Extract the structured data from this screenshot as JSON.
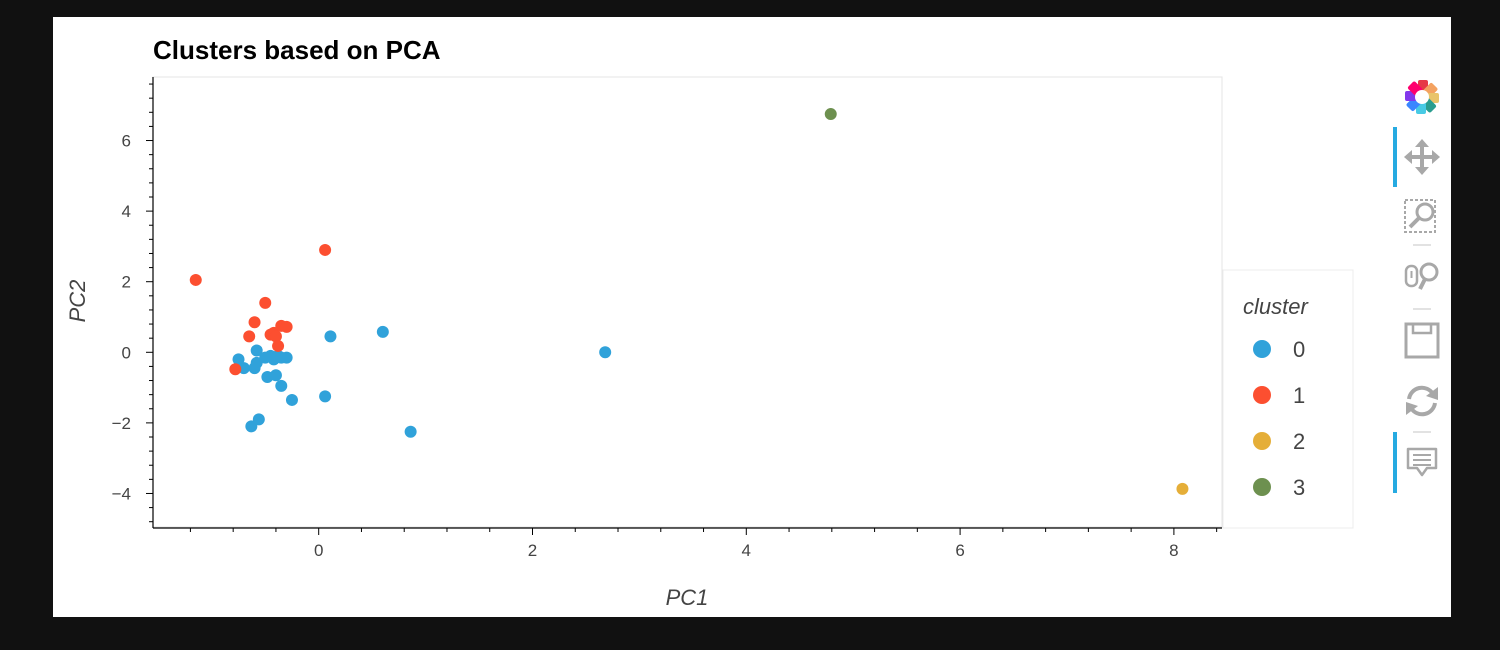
{
  "chart_data": {
    "type": "scatter",
    "title": "Clusters based on PCA",
    "xlabel": "PC1",
    "ylabel": "PC2",
    "xlim": [
      -1.55,
      8.45
    ],
    "ylim": [
      -4.95,
      7.8
    ],
    "xticks": [
      0,
      2,
      4,
      6,
      8
    ],
    "yticks": [
      -4,
      -2,
      0,
      2,
      4,
      6
    ],
    "tick_labels_x": [
      "0",
      "2",
      "4",
      "6",
      "8"
    ],
    "tick_labels_y": [
      "−4",
      "−2",
      "0",
      "2",
      "4",
      "6"
    ],
    "grid": false,
    "legend": {
      "title": "cluster",
      "placement": "right"
    },
    "series": [
      {
        "name": "0",
        "color": "#30a2da",
        "points": [
          [
            -0.75,
            -0.2
          ],
          [
            -0.7,
            -0.45
          ],
          [
            -0.6,
            -0.45
          ],
          [
            -0.58,
            -0.3
          ],
          [
            -0.58,
            0.05
          ],
          [
            -0.5,
            -0.15
          ],
          [
            -0.48,
            -0.7
          ],
          [
            -0.45,
            -0.1
          ],
          [
            -0.42,
            -0.2
          ],
          [
            -0.38,
            -0.1
          ],
          [
            -0.4,
            -0.65
          ],
          [
            -0.35,
            -0.15
          ],
          [
            -0.35,
            -0.95
          ],
          [
            -0.3,
            -0.15
          ],
          [
            -0.25,
            -1.35
          ],
          [
            -0.63,
            -2.1
          ],
          [
            -0.56,
            -1.9
          ],
          [
            0.06,
            -1.25
          ],
          [
            0.11,
            0.45
          ],
          [
            0.6,
            0.58
          ],
          [
            0.86,
            -2.25
          ],
          [
            2.68,
            0.0
          ]
        ]
      },
      {
        "name": "1",
        "color": "#fc4f30",
        "points": [
          [
            -1.15,
            2.05
          ],
          [
            0.06,
            2.9
          ],
          [
            -0.5,
            1.4
          ],
          [
            -0.6,
            0.85
          ],
          [
            -0.65,
            0.45
          ],
          [
            -0.45,
            0.5
          ],
          [
            -0.42,
            0.55
          ],
          [
            -0.4,
            0.45
          ],
          [
            -0.35,
            0.75
          ],
          [
            -0.3,
            0.72
          ],
          [
            -0.38,
            0.18
          ],
          [
            -0.78,
            -0.48
          ]
        ]
      },
      {
        "name": "2",
        "color": "#e5ae38",
        "points": [
          [
            8.08,
            -3.87
          ]
        ]
      },
      {
        "name": "3",
        "color": "#6d904f",
        "points": [
          [
            4.79,
            6.75
          ]
        ]
      }
    ]
  },
  "toolbar": {
    "tools": [
      {
        "name": "bokeh-logo-icon",
        "active": false
      },
      {
        "name": "pan-tool-icon",
        "active": true
      },
      {
        "name": "box-zoom-tool-icon",
        "active": false
      },
      {
        "name": "wheel-zoom-tool-icon",
        "active": false
      },
      {
        "name": "save-tool-icon",
        "active": false
      },
      {
        "name": "reset-tool-icon",
        "active": false
      },
      {
        "name": "hover-tool-icon",
        "active": true
      }
    ],
    "active_color": "#26aae1"
  }
}
